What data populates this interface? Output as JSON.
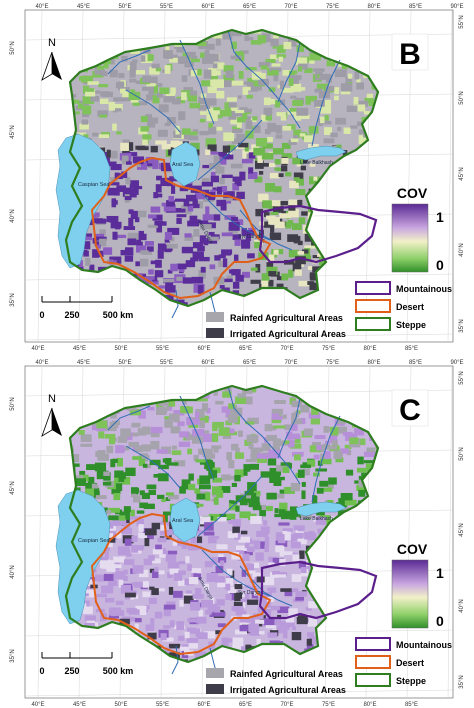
{
  "panels": [
    {
      "letter": "B",
      "north": "N",
      "scale_labels": [
        "0",
        "250",
        "500 km"
      ],
      "cov_title": "COV",
      "cov_max": "1",
      "cov_min": "0",
      "top_ticks": [
        "40°E",
        "45°E",
        "50°E",
        "55°E",
        "60°E",
        "65°E",
        "70°E",
        "75°E",
        "80°E",
        "85°E",
        "90°E"
      ],
      "bottom_ticks": [
        "40°E",
        "45°E",
        "50°E",
        "55°E",
        "60°E",
        "65°E",
        "70°E",
        "75°E",
        "80°E",
        "85°E"
      ],
      "left_ticks": [
        "50°N",
        "45°N",
        "40°N",
        "35°N"
      ],
      "right_ticks": [
        "55°N",
        "50°N",
        "45°N",
        "40°N",
        "35°N"
      ],
      "places": {
        "caspian": "Caspian Sea",
        "aral": "Aral Sea",
        "balkash": "Lake Balkhash",
        "amu": "Amu Darya",
        "syr": "Syr Darya"
      },
      "legend": {
        "rainfed": "Rainfed Agricultural Areas",
        "irrigated": "Irrigated Agricultural Areas",
        "mountainous": "Mountainous",
        "desert": "Desert",
        "steppe": "Steppe"
      }
    },
    {
      "letter": "C",
      "north": "N",
      "scale_labels": [
        "0",
        "250",
        "500 km"
      ],
      "cov_title": "COV",
      "cov_max": "1",
      "cov_min": "0",
      "top_ticks": [
        "40°E",
        "45°E",
        "50°E",
        "55°E",
        "60°E",
        "65°E",
        "70°E",
        "75°E",
        "80°E",
        "85°E",
        "90°E"
      ],
      "bottom_ticks": [
        "40°E",
        "45°E",
        "50°E",
        "55°E",
        "60°E",
        "65°E",
        "70°E",
        "75°E",
        "80°E",
        "85°E"
      ],
      "left_ticks": [
        "50°N",
        "45°N",
        "40°N",
        "35°N"
      ],
      "right_ticks": [
        "55°N",
        "50°N",
        "45°N",
        "40°N",
        "35°N"
      ],
      "places": {
        "caspian": "Caspian Sea",
        "aral": "Aral Sea",
        "balkash": "Lake Balkhash",
        "amu": "Amu Darya",
        "syr": "Syr Darya"
      },
      "legend": {
        "rainfed": "Rainfed Agricultural Areas",
        "irrigated": "Irrigated Agricultural Areas",
        "mountainous": "Mountainous",
        "desert": "Desert",
        "steppe": "Steppe"
      }
    }
  ],
  "colors": {
    "steppe_border": "#2e7d1f",
    "desert_border": "#e0601a",
    "mountain_border": "#5b1f8c",
    "water": "#7fd0ee",
    "river": "#2f6db5",
    "rainfed": "#a8a6ad",
    "irrigated": "#3e3c48",
    "cov_high": "#5a2a94",
    "cov_mid": "#f2f0c8",
    "cov_low": "#2f8f2a"
  }
}
